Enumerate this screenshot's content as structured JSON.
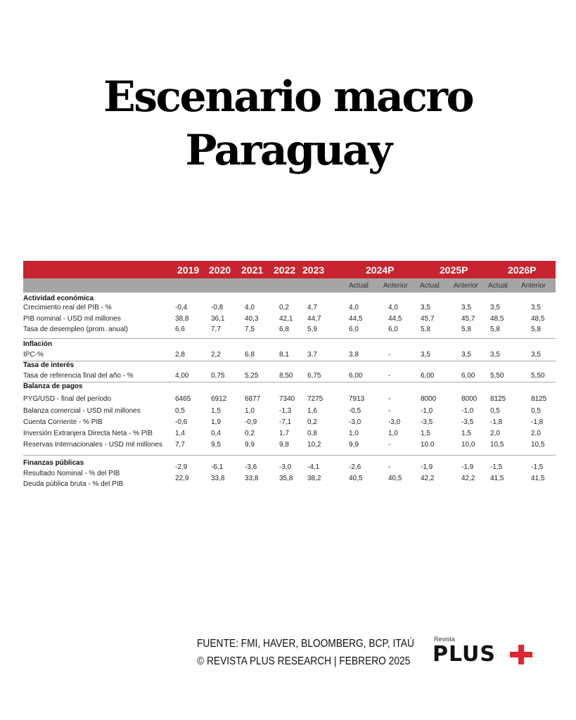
{
  "title": {
    "line1": "Escenario macro",
    "line2": "Paraguay"
  },
  "table": {
    "years": [
      "2019",
      "2020",
      "2021",
      "2022",
      "2023",
      "2024P",
      "2025P",
      "2026P"
    ],
    "subheaders": [
      "Actual",
      "Anterior",
      "Actual",
      "Anterior",
      "Actual",
      "Anterior"
    ],
    "sections": [
      {
        "name": "Actividad económica",
        "rows": [
          {
            "label": "Crecimiento real del PIB - %",
            "values": [
              "-0,4",
              "-0,8",
              "4,0",
              "0,2",
              "4,7",
              "4,0",
              "4,0",
              "3,5",
              "3,5",
              "3,5",
              "3,5"
            ]
          },
          {
            "label": "PIB nominal - USD mil millones",
            "values": [
              "38,8",
              "36,1",
              "40,3",
              "42,1",
              "44,7",
              "44,5",
              "44,5",
              "45,7",
              "45,7",
              "48,5",
              "48,5"
            ]
          },
          {
            "label": "Tasa de desempleo (prom. anual)",
            "values": [
              "6,6",
              "7,7",
              "7,5",
              "6,8",
              "5,9",
              "6,0",
              "6,0",
              "5,8",
              "5,8",
              "5,8",
              "5,8"
            ]
          }
        ]
      },
      {
        "name": "Inflación",
        "rows": [
          {
            "label": "IPC-%",
            "values": [
              "2,8",
              "2,2",
              "6,8",
              "8,1",
              "3,7",
              "3,8",
              "-",
              "3,5",
              "3,5",
              "3,5",
              "3,5"
            ]
          }
        ]
      },
      {
        "name": "Tasa de interés",
        "rows": [
          {
            "label": "Tasa de referencia final del año - %",
            "values": [
              "4,00",
              "0,75",
              "5,25",
              "8,50",
              "6,75",
              "6,00",
              "-",
              "6,00",
              "6,00",
              "5,50",
              "5,50"
            ]
          }
        ]
      },
      {
        "name": "Balanza de pagos",
        "rows": [
          {
            "label": "PYG/USD - final del período",
            "values": [
              "6465",
              "6912",
              "6877",
              "7340",
              "7275",
              "7913",
              "-",
              "8000",
              "8000",
              "8125",
              "8125"
            ]
          },
          {
            "label": "Balanza comercial - USD mil millones",
            "values": [
              "0,5",
              "1,5",
              "1,0",
              "-1,3",
              "1,6",
              "-0,5",
              "-",
              "-1,0",
              "-1,0",
              "0,5",
              "0,5"
            ]
          },
          {
            "label": "Cuenta Corriente - % PIB",
            "values": [
              "-0,6",
              "1,9",
              "-0,9",
              "-7,1",
              "0,2",
              "-3,0",
              "-3,0",
              "-3,5",
              "-3,5",
              "-1,8",
              "-1,8"
            ]
          },
          {
            "label": "Inversión Extranjera Directa Neta - % PIB",
            "values": [
              "1,4",
              "0,4",
              "0,2",
              "1,7",
              "0,8",
              "1,0",
              "1,0",
              "1,5",
              "1,5",
              "2,0",
              "2,0"
            ]
          },
          {
            "label": "Reservas Internacionales - USD mil millones",
            "values": [
              "7,7",
              "9,5",
              "9,9",
              "9,8",
              "10,2",
              "9,9",
              "-",
              "10.0",
              "10,0",
              "10,5",
              "10,5"
            ]
          }
        ]
      },
      {
        "name": "Finanzas públicas",
        "rows": [
          {
            "label": "Resultado Nominal - % del PIB",
            "values": [
              "-2,9",
              "-6,1",
              "-3,6",
              "-3,0",
              "-4,1",
              "-2,6",
              "-",
              "-1,9",
              "-1,9",
              "-1,5",
              "-1,5"
            ]
          },
          {
            "label": "Deuda pública bruta - % del PIB",
            "values": [
              "22,9",
              "33,8",
              "33,8",
              "35,8",
              "38,2",
              "40,5",
              "40,5",
              "42,2",
              "42,2",
              "41,5",
              "41,5"
            ]
          }
        ]
      }
    ]
  },
  "footer": {
    "source": "FUENTE: FMI, HAVER, BLOOMBERG, BCP, ITAÚ",
    "credit": "© REVISTA PLUS RESEARCH | FEBRERO 2025",
    "logo_small": "Revista",
    "logo_big": "PLUS"
  },
  "colors": {
    "header_red": "#c8242f",
    "subheader_gray": "#a5a5a5",
    "logo_plus_red": "#e0262e"
  }
}
